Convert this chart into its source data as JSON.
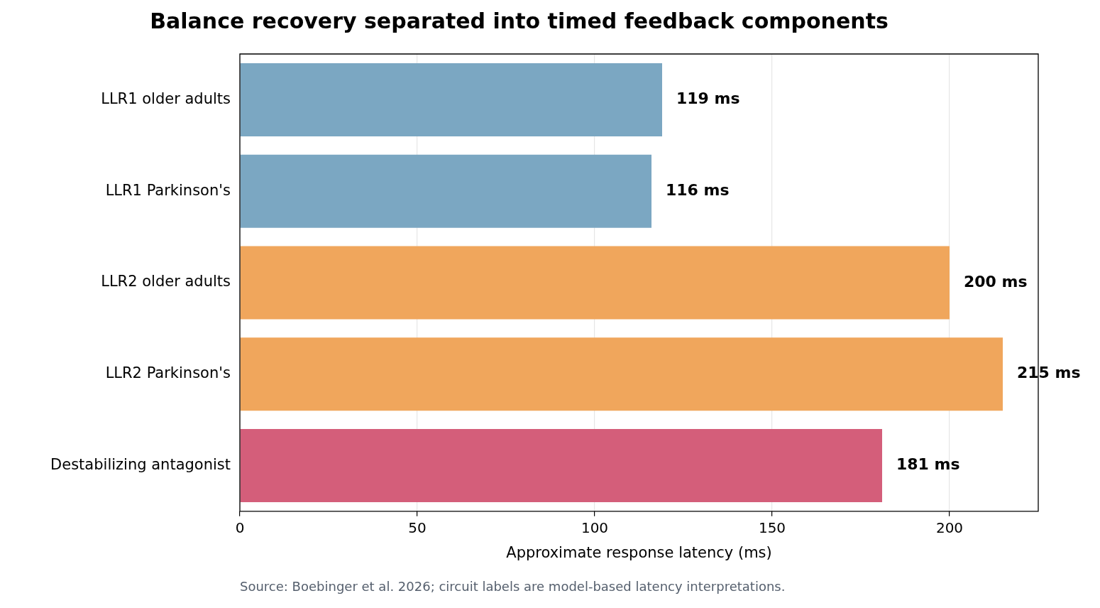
{
  "chart_data": {
    "type": "bar",
    "orientation": "horizontal",
    "title": "Balance recovery separated into timed feedback components",
    "xlabel": "Approximate response latency (ms)",
    "categories": [
      "LLR1 older adults",
      "LLR1 Parkinson's",
      "LLR2 older adults",
      "LLR2 Parkinson's",
      "Destabilizing antagonist"
    ],
    "values": [
      119,
      116,
      200,
      215,
      181
    ],
    "colors": [
      "#7ba7c2",
      "#7ba7c2",
      "#f0a65c",
      "#f0a65c",
      "#d45e7a"
    ],
    "value_labels": [
      "119 ms",
      "116 ms",
      "200 ms",
      "215 ms",
      "181 ms"
    ],
    "xlim": [
      0,
      225
    ],
    "xticks": [
      0,
      50,
      100,
      150,
      200
    ],
    "grid": "x",
    "legend": false,
    "annotations": [
      "Source: Boebinger et al. 2026; circuit labels are model-based latency interpretations."
    ]
  }
}
